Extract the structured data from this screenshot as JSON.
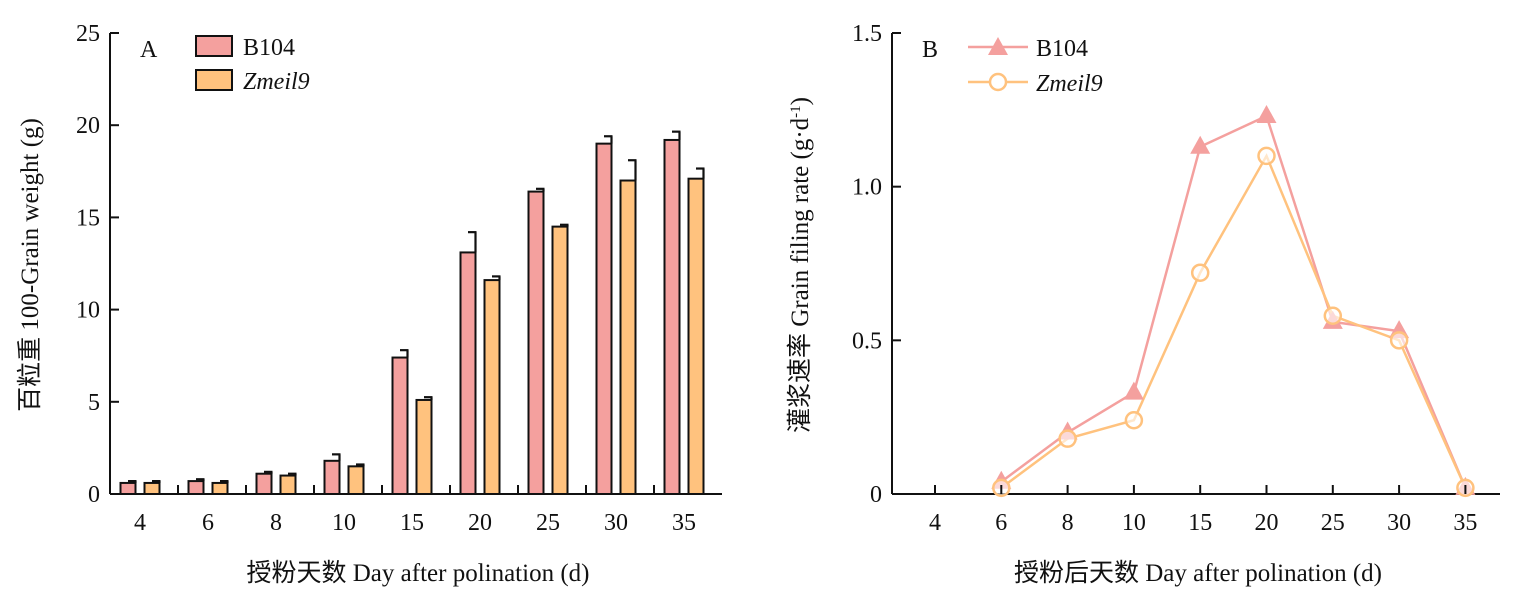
{
  "chart_data": [
    {
      "type": "bar",
      "panel_label": "A",
      "categories": [
        "4",
        "6",
        "8",
        "10",
        "15",
        "20",
        "25",
        "30",
        "35"
      ],
      "xlabel": "授粉天数  Day after polination (d)",
      "ylabel": "百粒重 100-Grain weight (g)",
      "ylim": [
        0,
        25
      ],
      "yticks": [
        "0",
        "5",
        "10",
        "15",
        "20",
        "25"
      ],
      "legend_position": "top-left",
      "series": [
        {
          "name": "B104",
          "color": "#f4a09e",
          "values": [
            0.6,
            0.7,
            1.1,
            1.8,
            7.4,
            13.1,
            16.4,
            19.0,
            19.2
          ],
          "errors": [
            0.1,
            0.1,
            0.1,
            0.35,
            0.4,
            1.1,
            0.15,
            0.4,
            0.45
          ]
        },
        {
          "name": "Zmeil9",
          "color": "#ffc27e",
          "values": [
            0.6,
            0.6,
            1.0,
            1.5,
            5.1,
            11.6,
            14.5,
            17.0,
            17.1
          ],
          "errors": [
            0.1,
            0.1,
            0.1,
            0.1,
            0.15,
            0.2,
            0.1,
            1.1,
            0.55
          ]
        }
      ]
    },
    {
      "type": "line",
      "panel_label": "B",
      "categories": [
        "4",
        "6",
        "8",
        "10",
        "15",
        "20",
        "25",
        "30",
        "35"
      ],
      "xlabel": "授粉后天数 Day after polination (d)",
      "ylabel": "灌浆速率 Grain filing rate (g·d",
      "ylabel_sup": "-1",
      "ylabel_end": ")",
      "ylim": [
        0,
        1.5
      ],
      "yticks": [
        "0",
        "0.5",
        "1.0",
        "1.5"
      ],
      "legend_position": "top-left",
      "series": [
        {
          "name": "B104",
          "color": "#f4a09e",
          "marker": "triangle",
          "values": [
            null,
            0.04,
            0.2,
            0.33,
            1.13,
            1.23,
            0.56,
            0.53,
            0.02
          ]
        },
        {
          "name": "Zmeil9",
          "color": "#ffc27e",
          "marker": "circle",
          "values": [
            null,
            0.02,
            0.18,
            0.24,
            0.72,
            1.1,
            0.58,
            0.5,
            0.02
          ]
        }
      ]
    }
  ]
}
